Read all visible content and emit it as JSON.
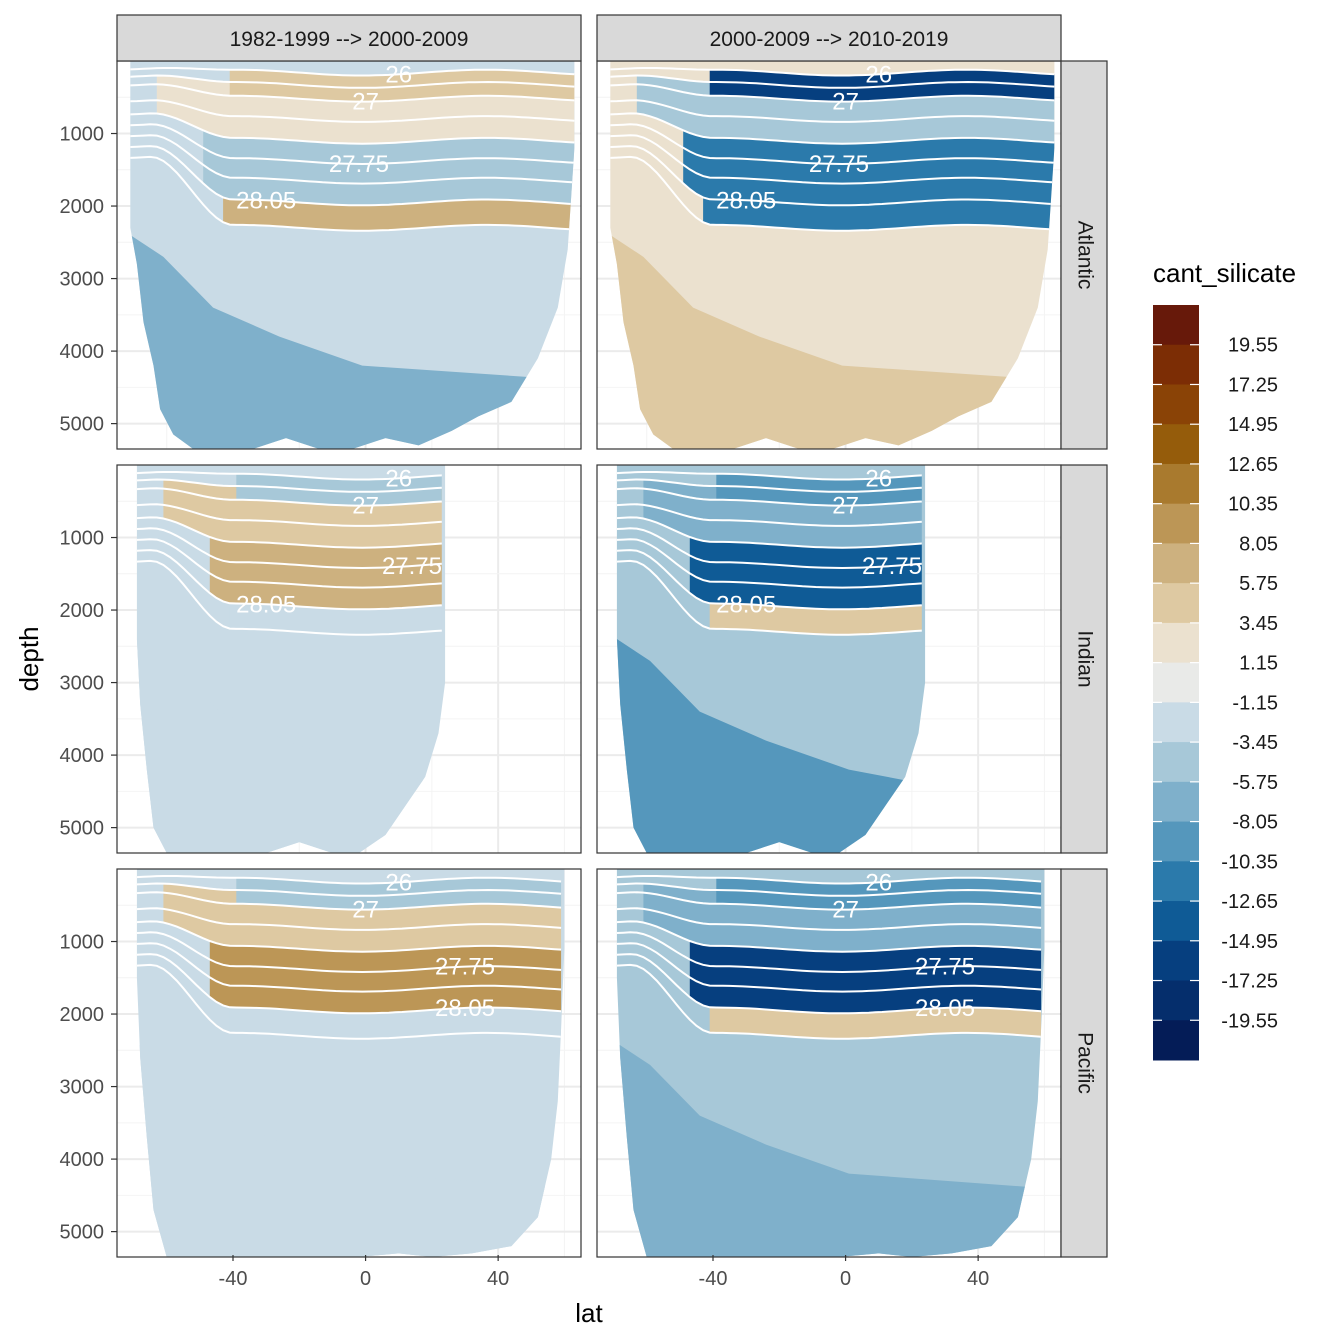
{
  "chart_data": {
    "type": "heatmap",
    "description_kind": "faceted filled-contour depth sections",
    "xlabel": "lat",
    "ylabel": "depth",
    "xlim": [
      -75,
      65
    ],
    "ylim": [
      5350,
      0
    ],
    "x_ticks": [
      -40,
      0,
      40
    ],
    "y_ticks": [
      1000,
      2000,
      3000,
      4000,
      5000
    ],
    "columns": [
      "1982-1999 --> 2000-2009",
      "2000-2009 --> 2010-2019"
    ],
    "rows": [
      "Atlantic",
      "Indian",
      "Pacific"
    ],
    "legend": {
      "title": "cant_silicate",
      "position": "right",
      "labels": [
        "19.55",
        "17.25",
        "14.95",
        "12.65",
        "10.35",
        "8.05",
        "5.75",
        "3.45",
        "1.15",
        "-1.15",
        "-3.45",
        "-5.75",
        "-8.05",
        "-10.35",
        "-12.65",
        "-14.95",
        "-17.25",
        "-19.55"
      ],
      "colors": [
        "#67190a",
        "#7c2d05",
        "#8a4306",
        "#955c0b",
        "#a97a2e",
        "#bc9656",
        "#cdb17f",
        "#dec9a2",
        "#ebe1cf",
        "#e9eae8",
        "#c9dbe6",
        "#a7c8d8",
        "#7fb0cb",
        "#5597bc",
        "#2b7aab",
        "#0f5b96",
        "#063f7f",
        "#052e6c",
        "#041c57"
      ]
    },
    "isopycnal_labels": [
      "26",
      "27",
      "27.75",
      "28.05"
    ],
    "basin_lat_range": {
      "Atlantic": [
        -71,
        63
      ],
      "Indian": [
        -69,
        24
      ],
      "Pacific": [
        -69,
        60
      ]
    },
    "panels": [
      {
        "column": "1982-1999 --> 2000-2009",
        "row": "Atlantic",
        "deep": "-1.15",
        "bottom": "-5.75",
        "intermediate": "-3.45",
        "upper": "1.15",
        "around_28.05": "5.75",
        "near_surface": "3.45"
      },
      {
        "column": "2000-2009 --> 2010-2019",
        "row": "Atlantic",
        "deep": "1.15",
        "bottom": "3.45",
        "intermediate": "-10.35",
        "upper": "-3.45",
        "around_28.05": "-10.35",
        "near_surface": "-14.95"
      },
      {
        "column": "1982-1999 --> 2000-2009",
        "row": "Indian",
        "deep": "-1.15",
        "bottom": "-1.15",
        "intermediate": "5.75",
        "upper": "3.45",
        "around_28.05": "-1.15",
        "near_surface": "-3.45"
      },
      {
        "column": "2000-2009 --> 2010-2019",
        "row": "Indian",
        "deep": "-3.45",
        "bottom": "-8.05",
        "intermediate": "-12.65",
        "upper": "-5.75",
        "around_28.05": "3.45",
        "near_surface": "-8.05"
      },
      {
        "column": "1982-1999 --> 2000-2009",
        "row": "Pacific",
        "deep": "-1.15",
        "bottom": "-1.15",
        "intermediate": "8.05",
        "upper": "3.45",
        "around_28.05": "-1.15",
        "near_surface": "-3.45"
      },
      {
        "column": "2000-2009 --> 2010-2019",
        "row": "Pacific",
        "deep": "-3.45",
        "bottom": "-5.75",
        "intermediate": "-14.95",
        "upper": "-5.75",
        "around_28.05": "3.45",
        "near_surface": "-8.05"
      }
    ]
  }
}
